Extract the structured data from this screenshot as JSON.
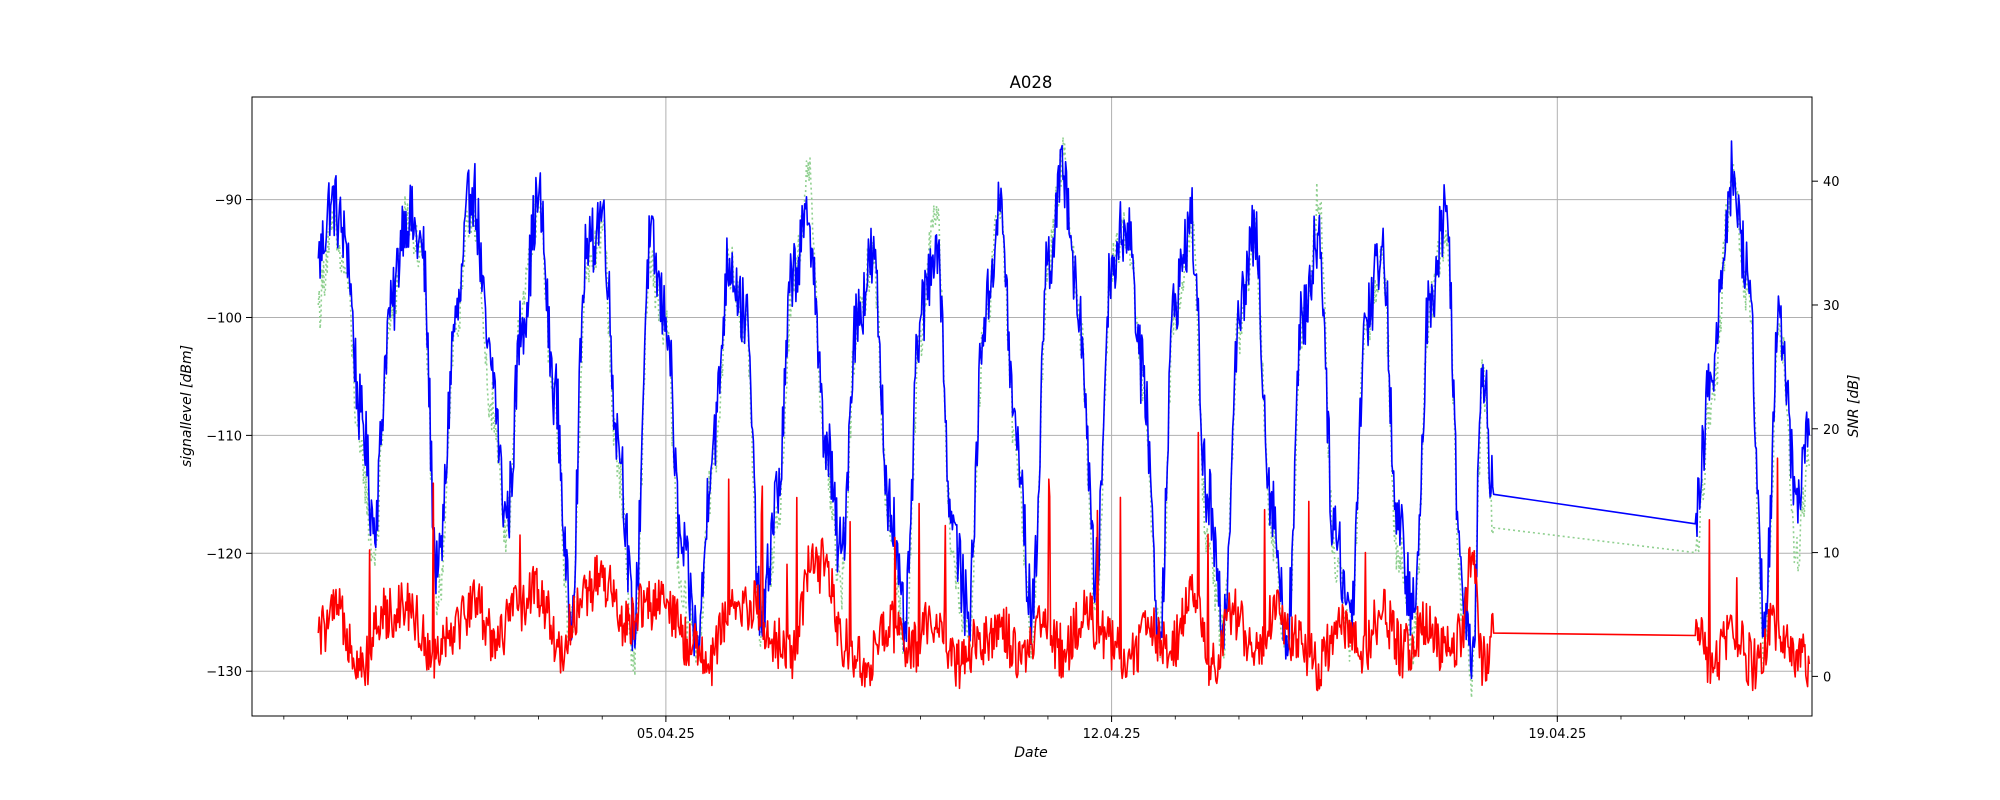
{
  "chart_data": {
    "type": "line",
    "title": "A028",
    "xlabel": "Date",
    "ylabel": "signallevel [dBm]",
    "ylabel_right": "SNR [dB]",
    "grid": true,
    "x_range": [
      "2025-03-29T12:00",
      "2025-04-23T00:00"
    ],
    "x_ticks": [
      "05.04.25",
      "12.04.25",
      "19.04.25"
    ],
    "x_tick_dates": [
      "2025-04-05",
      "2025-04-12",
      "2025-04-19"
    ],
    "ylim_left": [
      -133.8,
      -81.3
    ],
    "ylim_right": [
      -3.2,
      46.8
    ],
    "y_ticks_left": [
      -90,
      -100,
      -110,
      -120,
      -130
    ],
    "y_ticks_right": [
      40,
      30,
      20,
      10,
      0
    ],
    "colors": {
      "signal": "#0000ff",
      "snr": "#90d090",
      "noise": "#ff0000"
    },
    "series": [
      {
        "axis": "left",
        "color": "#0000ff",
        "style": "solid",
        "points": [
          [
            "2025-03-30T13:00",
            -95
          ],
          [
            "2025-03-30T18:00",
            -90
          ],
          [
            "2025-03-30T23:00",
            -93
          ],
          [
            "2025-03-31T05:00",
            -108
          ],
          [
            "2025-03-31T10:00",
            -117
          ],
          [
            "2025-03-31T16:00",
            -100
          ],
          [
            "2025-03-31T22:00",
            -91
          ],
          [
            "2025-04-01T04:00",
            -94
          ],
          [
            "2025-04-01T10:00",
            -122
          ],
          [
            "2025-04-01T17:00",
            -100
          ],
          [
            "2025-04-01T23:00",
            -89
          ],
          [
            "2025-04-02T06:00",
            -104
          ],
          [
            "2025-04-02T12:00",
            -117
          ],
          [
            "2025-04-02T18:00",
            -100
          ],
          [
            "2025-04-03T00:00",
            -90
          ],
          [
            "2025-04-03T06:00",
            -106
          ],
          [
            "2025-04-03T12:00",
            -125
          ],
          [
            "2025-04-03T18:00",
            -95
          ],
          [
            "2025-04-04T00:00",
            -91
          ],
          [
            "2025-04-04T06:00",
            -110
          ],
          [
            "2025-04-04T12:00",
            -126
          ],
          [
            "2025-04-04T18:00",
            -94
          ],
          [
            "2025-04-05T00:00",
            -100
          ],
          [
            "2025-04-05T06:00",
            -120
          ],
          [
            "2025-04-05T12:00",
            -127
          ],
          [
            "2025-04-05T18:00",
            -110
          ],
          [
            "2025-04-06T00:00",
            -95
          ],
          [
            "2025-04-06T06:00",
            -100
          ],
          [
            "2025-04-06T12:00",
            -126
          ],
          [
            "2025-04-06T18:00",
            -115
          ],
          [
            "2025-04-07T00:00",
            -96
          ],
          [
            "2025-04-07T06:00",
            -92
          ],
          [
            "2025-04-07T12:00",
            -110
          ],
          [
            "2025-04-07T18:00",
            -120
          ],
          [
            "2025-04-08T00:00",
            -100
          ],
          [
            "2025-04-08T06:00",
            -95
          ],
          [
            "2025-04-08T12:00",
            -115
          ],
          [
            "2025-04-08T18:00",
            -126
          ],
          [
            "2025-04-09T00:00",
            -100
          ],
          [
            "2025-04-09T06:00",
            -93
          ],
          [
            "2025-04-09T12:00",
            -118
          ],
          [
            "2025-04-09T18:00",
            -125
          ],
          [
            "2025-04-10T00:00",
            -100
          ],
          [
            "2025-04-10T06:00",
            -91
          ],
          [
            "2025-04-10T12:00",
            -110
          ],
          [
            "2025-04-10T18:00",
            -125
          ],
          [
            "2025-04-11T00:00",
            -95
          ],
          [
            "2025-04-11T06:00",
            -88
          ],
          [
            "2025-04-11T12:00",
            -100
          ],
          [
            "2025-04-11T18:00",
            -122
          ],
          [
            "2025-04-12T00:00",
            -95
          ],
          [
            "2025-04-12T06:00",
            -92
          ],
          [
            "2025-04-12T12:00",
            -105
          ],
          [
            "2025-04-12T18:00",
            -126
          ],
          [
            "2025-04-13T00:00",
            -98
          ],
          [
            "2025-04-13T06:00",
            -92
          ],
          [
            "2025-04-13T12:00",
            -115
          ],
          [
            "2025-04-13T18:00",
            -126
          ],
          [
            "2025-04-14T00:00",
            -100
          ],
          [
            "2025-04-14T06:00",
            -93
          ],
          [
            "2025-04-14T12:00",
            -115
          ],
          [
            "2025-04-14T18:00",
            -127
          ],
          [
            "2025-04-15T00:00",
            -100
          ],
          [
            "2025-04-15T06:00",
            -93
          ],
          [
            "2025-04-15T12:00",
            -118
          ],
          [
            "2025-04-15T18:00",
            -125
          ],
          [
            "2025-04-16T00:00",
            -100
          ],
          [
            "2025-04-16T06:00",
            -94
          ],
          [
            "2025-04-16T12:00",
            -118
          ],
          [
            "2025-04-16T18:00",
            -125
          ],
          [
            "2025-04-17T00:00",
            -98
          ],
          [
            "2025-04-17T06:00",
            -91
          ],
          [
            "2025-04-17T12:00",
            -122
          ],
          [
            "2025-04-17T16:00",
            -128
          ],
          [
            "2025-04-17T20:00",
            -104
          ],
          [
            "2025-04-18T00:00",
            -115
          ],
          [
            "2025-04-21T04:00",
            -117.5
          ],
          [
            "2025-04-21T10:00",
            -105
          ],
          [
            "2025-04-21T18:00",
            -88
          ],
          [
            "2025-04-22T00:00",
            -97
          ],
          [
            "2025-04-22T06:00",
            -125
          ],
          [
            "2025-04-22T12:00",
            -100
          ],
          [
            "2025-04-22T18:00",
            -115
          ],
          [
            "2025-04-22T23:00",
            -110
          ]
        ]
      },
      {
        "axis": "right",
        "color": "#90d090",
        "style": "dotted",
        "points": [
          [
            "2025-03-30T13:00",
            30
          ],
          [
            "2025-03-30T18:00",
            36
          ],
          [
            "2025-03-30T23:00",
            33
          ],
          [
            "2025-03-31T05:00",
            18
          ],
          [
            "2025-03-31T10:00",
            10
          ],
          [
            "2025-03-31T16:00",
            28
          ],
          [
            "2025-03-31T22:00",
            37
          ],
          [
            "2025-04-01T04:00",
            34
          ],
          [
            "2025-04-01T10:00",
            6
          ],
          [
            "2025-04-01T17:00",
            28
          ],
          [
            "2025-04-01T23:00",
            38
          ],
          [
            "2025-04-02T06:00",
            22
          ],
          [
            "2025-04-02T12:00",
            12
          ],
          [
            "2025-04-02T18:00",
            30
          ],
          [
            "2025-04-03T00:00",
            38
          ],
          [
            "2025-04-03T06:00",
            22
          ],
          [
            "2025-04-03T12:00",
            3
          ],
          [
            "2025-04-03T18:00",
            32
          ],
          [
            "2025-04-04T00:00",
            36
          ],
          [
            "2025-04-04T06:00",
            17
          ],
          [
            "2025-04-04T12:00",
            2
          ],
          [
            "2025-04-04T18:00",
            33
          ],
          [
            "2025-04-05T00:00",
            28
          ],
          [
            "2025-04-05T06:00",
            6
          ],
          [
            "2025-04-05T12:00",
            3
          ],
          [
            "2025-04-05T18:00",
            17
          ],
          [
            "2025-04-06T00:00",
            33
          ],
          [
            "2025-04-06T06:00",
            28
          ],
          [
            "2025-04-06T12:00",
            4
          ],
          [
            "2025-04-06T18:00",
            12
          ],
          [
            "2025-04-07T00:00",
            32
          ],
          [
            "2025-04-07T06:00",
            40
          ],
          [
            "2025-04-07T12:00",
            18
          ],
          [
            "2025-04-07T18:00",
            7
          ],
          [
            "2025-04-08T00:00",
            28
          ],
          [
            "2025-04-08T06:00",
            34
          ],
          [
            "2025-04-08T12:00",
            13
          ],
          [
            "2025-04-08T18:00",
            3
          ],
          [
            "2025-04-09T00:00",
            28
          ],
          [
            "2025-04-09T06:00",
            38
          ],
          [
            "2025-04-09T12:00",
            10
          ],
          [
            "2025-04-09T18:00",
            3
          ],
          [
            "2025-04-10T00:00",
            28
          ],
          [
            "2025-04-10T06:00",
            37
          ],
          [
            "2025-04-10T12:00",
            18
          ],
          [
            "2025-04-10T18:00",
            3
          ],
          [
            "2025-04-11T00:00",
            33
          ],
          [
            "2025-04-11T06:00",
            42
          ],
          [
            "2025-04-11T12:00",
            28
          ],
          [
            "2025-04-11T18:00",
            6
          ],
          [
            "2025-04-12T00:00",
            33
          ],
          [
            "2025-04-12T06:00",
            36
          ],
          [
            "2025-04-12T12:00",
            23
          ],
          [
            "2025-04-12T18:00",
            3
          ],
          [
            "2025-04-13T00:00",
            30
          ],
          [
            "2025-04-13T06:00",
            36
          ],
          [
            "2025-04-13T12:00",
            12
          ],
          [
            "2025-04-13T18:00",
            3
          ],
          [
            "2025-04-14T00:00",
            28
          ],
          [
            "2025-04-14T06:00",
            35
          ],
          [
            "2025-04-14T12:00",
            12
          ],
          [
            "2025-04-14T18:00",
            2
          ],
          [
            "2025-04-15T00:00",
            28
          ],
          [
            "2025-04-15T06:00",
            38
          ],
          [
            "2025-04-15T12:00",
            10
          ],
          [
            "2025-04-15T18:00",
            3
          ],
          [
            "2025-04-16T00:00",
            28
          ],
          [
            "2025-04-16T06:00",
            34
          ],
          [
            "2025-04-16T12:00",
            10
          ],
          [
            "2025-04-16T18:00",
            3
          ],
          [
            "2025-04-17T00:00",
            30
          ],
          [
            "2025-04-17T06:00",
            36
          ],
          [
            "2025-04-17T12:00",
            6
          ],
          [
            "2025-04-17T16:00",
            0
          ],
          [
            "2025-04-17T20:00",
            24
          ],
          [
            "2025-04-18T00:00",
            12
          ],
          [
            "2025-04-21T04:00",
            10
          ],
          [
            "2025-04-21T10:00",
            22
          ],
          [
            "2025-04-21T18:00",
            40
          ],
          [
            "2025-04-22T00:00",
            31
          ],
          [
            "2025-04-22T06:00",
            2
          ],
          [
            "2025-04-22T12:00",
            28
          ],
          [
            "2025-04-22T18:00",
            10
          ],
          [
            "2025-04-22T23:00",
            17
          ]
        ]
      },
      {
        "axis": "right",
        "color": "#ff0000",
        "style": "solid",
        "points": [
          [
            "2025-03-30T13:00",
            3.5
          ],
          [
            "2025-03-30T20:00",
            5
          ],
          [
            "2025-03-31T06:00",
            1
          ],
          [
            "2025-03-31T14:00",
            5
          ],
          [
            "2025-03-31T22:00",
            6
          ],
          [
            "2025-04-01T08:00",
            2
          ],
          [
            "2025-04-01T16:00",
            4
          ],
          [
            "2025-04-02T00:00",
            6
          ],
          [
            "2025-04-02T08:00",
            3
          ],
          [
            "2025-04-02T16:00",
            5.5
          ],
          [
            "2025-04-03T00:00",
            7
          ],
          [
            "2025-04-03T08:00",
            2
          ],
          [
            "2025-04-03T16:00",
            6
          ],
          [
            "2025-04-04T00:00",
            8
          ],
          [
            "2025-04-04T08:00",
            4
          ],
          [
            "2025-04-04T16:00",
            6
          ],
          [
            "2025-04-05T00:00",
            5.5
          ],
          [
            "2025-04-05T08:00",
            3
          ],
          [
            "2025-04-05T16:00",
            1
          ],
          [
            "2025-04-06T00:00",
            5
          ],
          [
            "2025-04-06T08:00",
            6
          ],
          [
            "2025-04-06T16:00",
            3
          ],
          [
            "2025-04-07T00:00",
            2
          ],
          [
            "2025-04-07T06:00",
            8.5
          ],
          [
            "2025-04-07T12:00",
            9
          ],
          [
            "2025-04-07T18:00",
            3
          ],
          [
            "2025-04-08T04:00",
            1
          ],
          [
            "2025-04-08T12:00",
            4
          ],
          [
            "2025-04-08T20:00",
            2
          ],
          [
            "2025-04-09T06:00",
            5
          ],
          [
            "2025-04-09T14:00",
            1
          ],
          [
            "2025-04-09T22:00",
            3
          ],
          [
            "2025-04-10T06:00",
            4
          ],
          [
            "2025-04-10T14:00",
            1
          ],
          [
            "2025-04-10T22:00",
            4
          ],
          [
            "2025-04-11T06:00",
            2
          ],
          [
            "2025-04-11T14:00",
            5
          ],
          [
            "2025-04-11T22:00",
            3
          ],
          [
            "2025-04-12T06:00",
            1
          ],
          [
            "2025-04-12T14:00",
            4
          ],
          [
            "2025-04-12T22:00",
            2
          ],
          [
            "2025-04-13T06:00",
            7
          ],
          [
            "2025-04-13T14:00",
            1
          ],
          [
            "2025-04-13T22:00",
            5
          ],
          [
            "2025-04-14T06:00",
            2
          ],
          [
            "2025-04-14T14:00",
            5
          ],
          [
            "2025-04-14T22:00",
            3
          ],
          [
            "2025-04-15T06:00",
            1
          ],
          [
            "2025-04-15T14:00",
            4
          ],
          [
            "2025-04-15T22:00",
            2
          ],
          [
            "2025-04-16T06:00",
            5
          ],
          [
            "2025-04-16T14:00",
            2
          ],
          [
            "2025-04-16T22:00",
            4
          ],
          [
            "2025-04-17T06:00",
            2
          ],
          [
            "2025-04-17T12:00",
            3
          ],
          [
            "2025-04-17T16:00",
            10
          ],
          [
            "2025-04-17T20:00",
            1
          ],
          [
            "2025-04-18T00:00",
            3.5
          ],
          [
            "2025-04-21T04:00",
            3.3
          ],
          [
            "2025-04-21T10:00",
            1
          ],
          [
            "2025-04-21T18:00",
            4
          ],
          [
            "2025-04-22T02:00",
            1
          ],
          [
            "2025-04-22T10:00",
            4
          ],
          [
            "2025-04-22T18:00",
            2
          ],
          [
            "2025-04-22T23:00",
            1
          ]
        ]
      }
    ]
  }
}
